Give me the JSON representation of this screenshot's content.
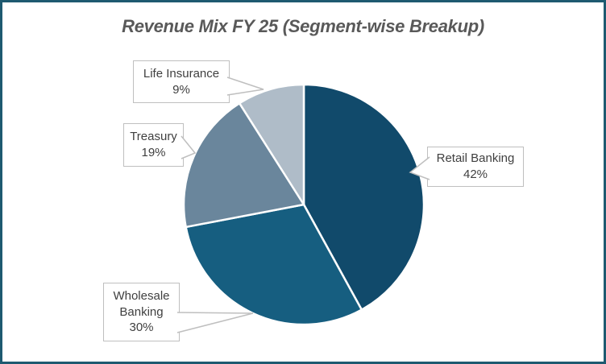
{
  "frame": {
    "border_color": "#1E5A70",
    "background": "#FFFFFF"
  },
  "chart_data": {
    "type": "pie",
    "title": "Revenue Mix FY 25 (Segment-wise Breakup)",
    "categories": [
      "Retail Banking",
      "Wholesale Banking",
      "Treasury",
      "Life Insurance"
    ],
    "values": [
      42,
      30,
      19,
      9
    ],
    "unit": "%",
    "colors": [
      "#114A6B",
      "#165E80",
      "#6A869C",
      "#AFBCC8"
    ],
    "slice_separator_color": "#FFFFFF",
    "start_angle_deg": 0,
    "direction": "clockwise",
    "legend_position": "none",
    "data_labels": "callout-boxes",
    "title_color": "#595959",
    "label_text_color": "#3F3F3F",
    "callout_border_color": "#BFBFBF"
  },
  "callouts": [
    {
      "label": "Life Insurance",
      "value": "9%"
    },
    {
      "label": "Treasury",
      "value": "19%"
    },
    {
      "label": "Retail Banking",
      "value": "42%"
    },
    {
      "label": "Wholesale Banking",
      "value": "30%"
    }
  ]
}
